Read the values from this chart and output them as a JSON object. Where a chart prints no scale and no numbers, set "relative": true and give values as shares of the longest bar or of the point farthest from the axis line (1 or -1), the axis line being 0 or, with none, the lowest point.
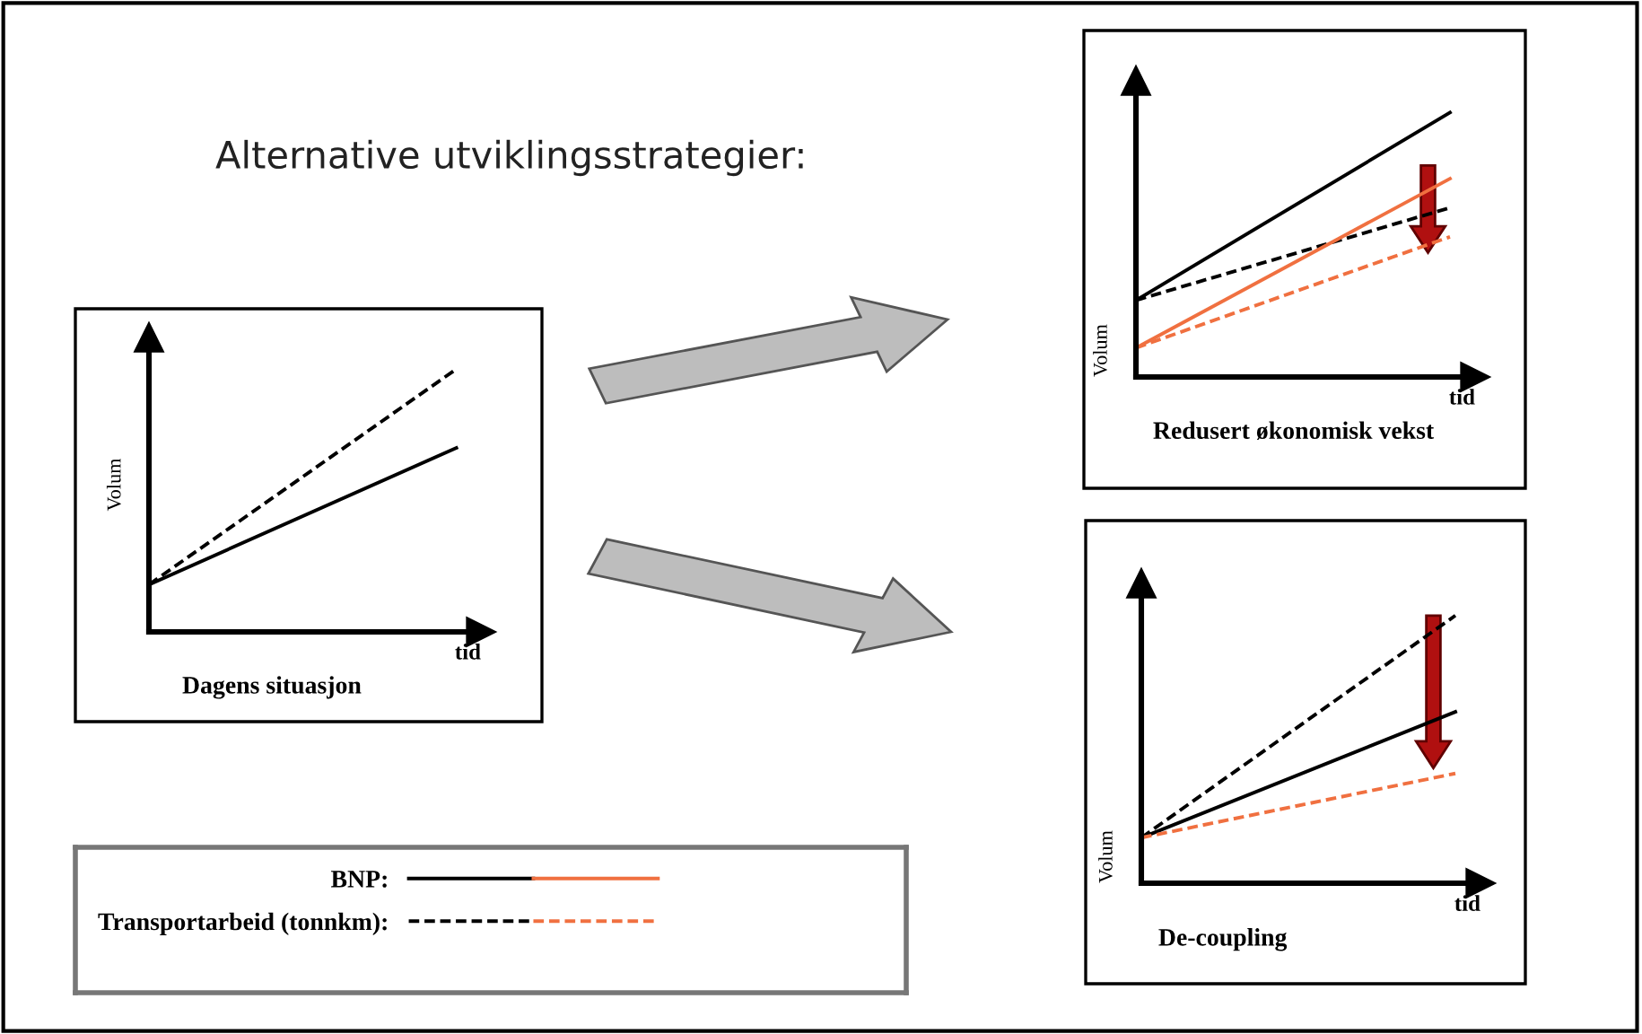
{
  "chart_data": [
    {
      "type": "line",
      "title": "Dagens situasjon",
      "xlabel": "tid",
      "ylabel": "Volum",
      "relative": true,
      "categories": [
        null,
        null
      ],
      "legend": "bottom",
      "annotations": [
        "Alternative utviklingsstrategier:"
      ],
      "series": [
        {
          "name": "BNP:",
          "color": "#000000",
          "line_style": "solid",
          "values": [
            0.18,
            0.7
          ]
        },
        {
          "name": "Transportarbeid (tonnkm):",
          "color": "#000000",
          "line_style": "dashed",
          "values": [
            0.18,
            1
          ]
        }
      ]
    },
    {
      "type": "line",
      "title": "Redusert økonomisk vekst",
      "xlabel": "tid",
      "ylabel": "Volum",
      "relative": true,
      "categories": [
        null,
        null
      ],
      "series": [
        {
          "color": "#000000",
          "line_style": "solid",
          "values": [
            0.29,
            1
          ]
        },
        {
          "color": "#000000",
          "line_style": "dashed",
          "values": [
            0.29,
            0.64
          ]
        },
        {
          "color": "#f07040",
          "line_style": "solid",
          "values": [
            0.11,
            0.75
          ]
        },
        {
          "color": "#f07040",
          "line_style": "dashed",
          "values": [
            0.11,
            0.53
          ]
        }
      ]
    },
    {
      "type": "line",
      "title": "De-coupling",
      "xlabel": "tid",
      "ylabel": "Volum",
      "relative": true,
      "categories": [
        null,
        null
      ],
      "series": [
        {
          "color": "#000000",
          "line_style": "dashed",
          "values": [
            0.17,
            1
          ]
        },
        {
          "color": "#000000",
          "line_style": "solid",
          "values": [
            0.17,
            0.64
          ]
        },
        {
          "color": "#f07040",
          "line_style": "dashed",
          "values": [
            0.17,
            0.41
          ]
        }
      ]
    }
  ]
}
